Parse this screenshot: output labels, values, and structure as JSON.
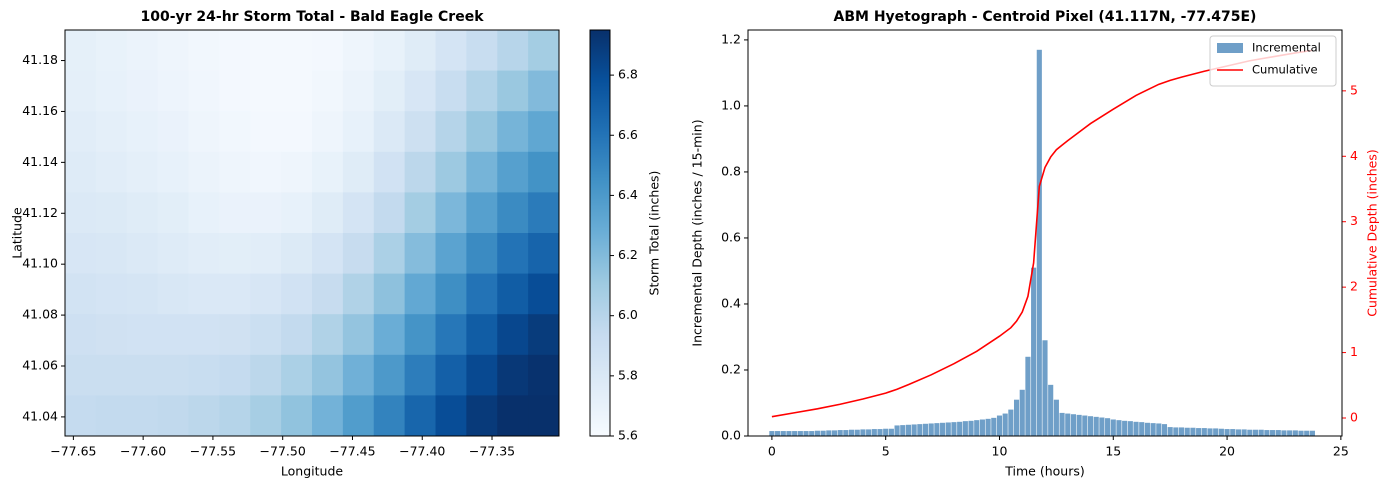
{
  "chart_data": [
    {
      "type": "heatmap",
      "title": "100-yr 24-hr Storm Total - Bald Eagle Creek",
      "xlabel": "Longitude",
      "ylabel": "Latitude",
      "xlim": [
        -77.656,
        -77.302
      ],
      "ylim": [
        41.0325,
        41.192
      ],
      "xticks": [
        {
          "value": -77.65,
          "label": "−77.65"
        },
        {
          "value": -77.6,
          "label": "−77.60"
        },
        {
          "value": -77.55,
          "label": "−77.55"
        },
        {
          "value": -77.5,
          "label": "−77.50"
        },
        {
          "value": -77.45,
          "label": "−77.45"
        },
        {
          "value": -77.4,
          "label": "−77.40"
        },
        {
          "value": -77.35,
          "label": "−77.35"
        }
      ],
      "yticks": [
        41.04,
        41.06,
        41.08,
        {
          "value": 41.1,
          "label": "41.10"
        },
        41.12,
        41.14,
        41.16,
        41.18
      ],
      "z": [
        [
          5.72,
          5.7,
          5.68,
          5.66,
          5.64,
          5.63,
          5.62,
          5.62,
          5.63,
          5.66,
          5.7,
          5.76,
          5.84,
          5.92,
          6.0,
          6.08
        ],
        [
          5.73,
          5.71,
          5.69,
          5.67,
          5.65,
          5.63,
          5.62,
          5.62,
          5.64,
          5.68,
          5.74,
          5.82,
          5.92,
          6.02,
          6.12,
          6.2
        ],
        [
          5.75,
          5.73,
          5.71,
          5.69,
          5.66,
          5.64,
          5.63,
          5.63,
          5.66,
          5.71,
          5.79,
          5.89,
          6.01,
          6.13,
          6.24,
          6.32
        ],
        [
          5.77,
          5.75,
          5.73,
          5.71,
          5.68,
          5.66,
          5.65,
          5.66,
          5.7,
          5.76,
          5.86,
          5.98,
          6.11,
          6.24,
          6.36,
          6.44
        ],
        [
          5.79,
          5.78,
          5.76,
          5.74,
          5.71,
          5.69,
          5.69,
          5.71,
          5.76,
          5.84,
          5.95,
          6.08,
          6.22,
          6.36,
          6.48,
          6.56
        ],
        [
          5.82,
          5.81,
          5.79,
          5.77,
          5.75,
          5.74,
          5.75,
          5.78,
          5.84,
          5.93,
          6.05,
          6.19,
          6.34,
          6.48,
          6.6,
          6.68
        ],
        [
          5.85,
          5.84,
          5.83,
          5.81,
          5.8,
          5.8,
          5.82,
          5.86,
          5.93,
          6.03,
          6.16,
          6.31,
          6.46,
          6.6,
          6.72,
          6.8
        ],
        [
          5.88,
          5.87,
          5.86,
          5.86,
          5.86,
          5.87,
          5.9,
          5.95,
          6.03,
          6.14,
          6.28,
          6.43,
          6.58,
          6.72,
          6.83,
          6.89
        ],
        [
          5.91,
          5.91,
          5.91,
          5.91,
          5.92,
          5.94,
          5.98,
          6.05,
          6.14,
          6.26,
          6.4,
          6.55,
          6.7,
          6.82,
          6.91,
          6.94
        ],
        [
          5.94,
          5.95,
          5.95,
          5.96,
          5.98,
          6.01,
          6.07,
          6.15,
          6.25,
          6.38,
          6.52,
          6.67,
          6.8,
          6.9,
          6.95,
          6.95
        ]
      ],
      "colormap": [
        "#f7fbff",
        "#deebf7",
        "#c6dbef",
        "#9ecae1",
        "#6baed6",
        "#4292c6",
        "#2171b5",
        "#08519c",
        "#08306b"
      ],
      "colorbar": {
        "label": "Storm Total (inches)",
        "clim": [
          5.6,
          6.95
        ],
        "ticks": [
          5.6,
          5.8,
          {
            "value": 6,
            "label": "6.0"
          },
          6.2,
          6.4,
          6.6,
          6.8
        ]
      }
    },
    {
      "type": "combo",
      "title": "ABM Hyetograph - Centroid Pixel (41.117N, -77.475E)",
      "xlabel": "Time (hours)",
      "ylabel": "Incremental Depth (inches / 15-min)",
      "y2label": "Cumulative Depth (inches)",
      "xlim": [
        -1.05,
        25.05
      ],
      "xticks": [
        0,
        5,
        10,
        15,
        20,
        25
      ],
      "ylim": [
        0,
        1.23
      ],
      "yticks": [
        {
          "value": 0,
          "label": "0.0"
        },
        0.2,
        0.4,
        0.6,
        0.8,
        {
          "value": 1,
          "label": "1.0"
        },
        1.2
      ],
      "y2lim": [
        -0.275,
        5.93
      ],
      "y2ticks": [
        0,
        1,
        2,
        3,
        4,
        5
      ],
      "legend": "upper right",
      "series": [
        {
          "name": "Incremental",
          "type": "bar",
          "color": "#6f9fc8",
          "width": 0.225,
          "x": [
            0,
            0.25,
            0.5,
            0.75,
            1,
            1.25,
            1.5,
            1.75,
            2,
            2.25,
            2.5,
            2.75,
            3,
            3.25,
            3.5,
            3.75,
            4,
            4.25,
            4.5,
            4.75,
            5,
            5.25,
            5.5,
            5.75,
            6,
            6.25,
            6.5,
            6.75,
            7,
            7.25,
            7.5,
            7.75,
            8,
            8.25,
            8.5,
            8.75,
            9,
            9.25,
            9.5,
            9.75,
            10,
            10.25,
            10.5,
            10.75,
            11,
            11.25,
            11.5,
            11.75,
            12,
            12.25,
            12.5,
            12.75,
            13,
            13.25,
            13.5,
            13.75,
            14,
            14.25,
            14.5,
            14.75,
            15,
            15.25,
            15.5,
            15.75,
            16,
            16.25,
            16.5,
            16.75,
            17,
            17.25,
            17.5,
            17.75,
            18,
            18.25,
            18.5,
            18.75,
            19,
            19.25,
            19.5,
            19.75,
            20,
            20.25,
            20.5,
            20.75,
            21,
            21.25,
            21.5,
            21.75,
            22,
            22.25,
            22.5,
            22.75,
            23,
            23.25,
            23.5,
            23.75
          ],
          "values": [
            0.015,
            0.015,
            0.015,
            0.015,
            0.015,
            0.015,
            0.015,
            0.015,
            0.016,
            0.016,
            0.017,
            0.017,
            0.018,
            0.018,
            0.019,
            0.019,
            0.02,
            0.02,
            0.021,
            0.021,
            0.022,
            0.022,
            0.032,
            0.033,
            0.034,
            0.035,
            0.036,
            0.037,
            0.038,
            0.039,
            0.04,
            0.041,
            0.042,
            0.043,
            0.045,
            0.046,
            0.048,
            0.05,
            0.052,
            0.055,
            0.062,
            0.068,
            0.08,
            0.11,
            0.14,
            0.24,
            0.51,
            1.17,
            0.29,
            0.155,
            0.11,
            0.07,
            0.068,
            0.066,
            0.064,
            0.062,
            0.06,
            0.058,
            0.056,
            0.054,
            0.05,
            0.048,
            0.046,
            0.045,
            0.043,
            0.042,
            0.04,
            0.039,
            0.038,
            0.036,
            0.027,
            0.026,
            0.026,
            0.025,
            0.025,
            0.024,
            0.024,
            0.023,
            0.023,
            0.022,
            0.021,
            0.021,
            0.02,
            0.02,
            0.019,
            0.019,
            0.019,
            0.018,
            0.018,
            0.018,
            0.017,
            0.017,
            0.017,
            0.016,
            0.016,
            0.016
          ]
        },
        {
          "name": "Cumulative",
          "type": "line",
          "axis": "y2",
          "color": "#ff0000",
          "x": [
            0,
            1,
            2,
            3,
            4,
            5,
            5.5,
            6,
            7,
            8,
            9,
            10,
            10.5,
            10.75,
            11,
            11.25,
            11.5,
            11.75,
            12,
            12.25,
            12.5,
            12.75,
            13,
            14,
            15,
            16,
            17,
            17.5,
            18,
            19,
            20,
            21,
            22,
            23,
            23.75
          ],
          "values": [
            0.02,
            0.08,
            0.14,
            0.21,
            0.29,
            0.38,
            0.44,
            0.51,
            0.66,
            0.83,
            1.02,
            1.25,
            1.38,
            1.48,
            1.62,
            1.86,
            2.37,
            3.54,
            3.83,
            3.99,
            4.1,
            4.17,
            4.24,
            4.5,
            4.72,
            4.93,
            5.1,
            5.16,
            5.21,
            5.3,
            5.38,
            5.46,
            5.52,
            5.58,
            5.62
          ]
        }
      ]
    }
  ]
}
